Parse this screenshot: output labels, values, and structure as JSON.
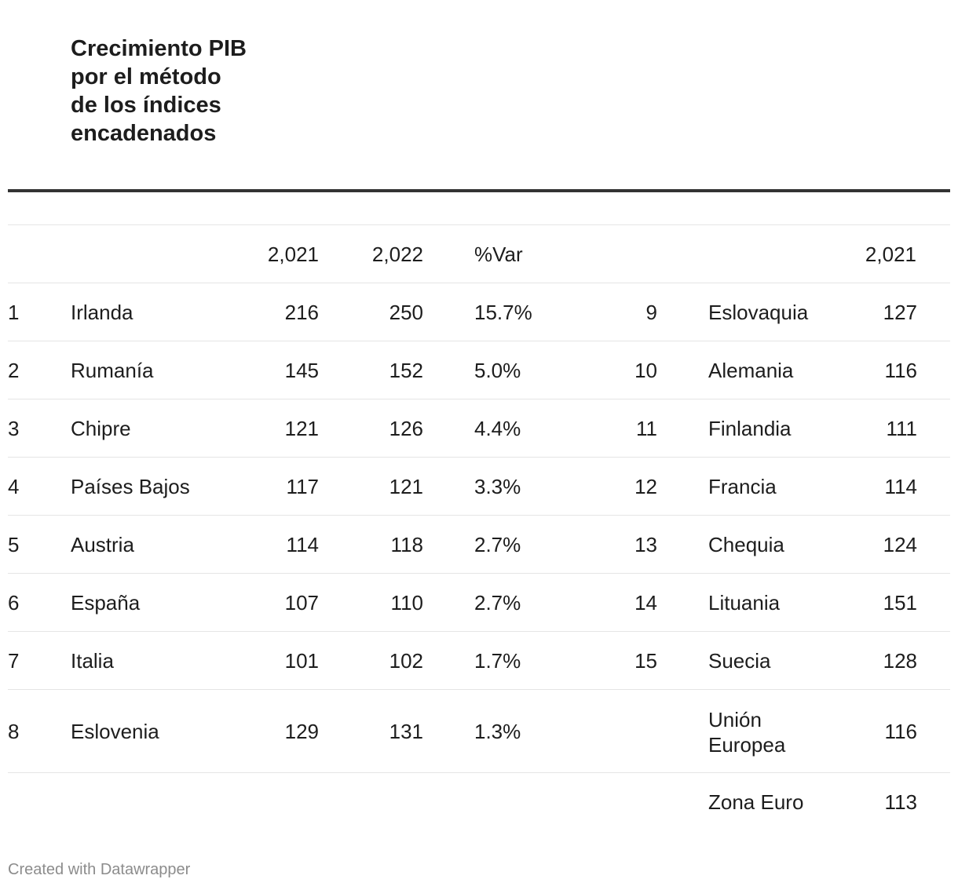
{
  "title": "Crecimiento PIB por el método de los índices encadenados",
  "headers": {
    "y2021": "2,021",
    "y2022": "2,022",
    "var": "%Var",
    "right_y2021": "2,021"
  },
  "left_rows": [
    {
      "rank": "1",
      "country": "Irlanda",
      "v2021": "216",
      "v2022": "250",
      "var": "15.7%"
    },
    {
      "rank": "2",
      "country": "Rumanía",
      "v2021": "145",
      "v2022": "152",
      "var": "5.0%"
    },
    {
      "rank": "3",
      "country": "Chipre",
      "v2021": "121",
      "v2022": "126",
      "var": "4.4%"
    },
    {
      "rank": "4",
      "country": "Países Bajos",
      "v2021": "117",
      "v2022": "121",
      "var": "3.3%"
    },
    {
      "rank": "5",
      "country": "Austria",
      "v2021": "114",
      "v2022": "118",
      "var": "2.7%"
    },
    {
      "rank": "6",
      "country": "España",
      "v2021": "107",
      "v2022": "110",
      "var": "2.7%"
    },
    {
      "rank": "7",
      "country": "Italia",
      "v2021": "101",
      "v2022": "102",
      "var": "1.7%"
    },
    {
      "rank": "8",
      "country": "Eslovenia",
      "v2021": "129",
      "v2022": "131",
      "var": "1.3%"
    }
  ],
  "right_rows": [
    {
      "rank": "9",
      "country": "Eslovaquia",
      "v2021": "127"
    },
    {
      "rank": "10",
      "country": "Alemania",
      "v2021": "116"
    },
    {
      "rank": "11",
      "country": "Finlandia",
      "v2021": "111"
    },
    {
      "rank": "12",
      "country": "Francia",
      "v2021": "114"
    },
    {
      "rank": "13",
      "country": "Chequia",
      "v2021": "124"
    },
    {
      "rank": "14",
      "country": "Lituania",
      "v2021": "151"
    },
    {
      "rank": "15",
      "country": "Suecia",
      "v2021": "128"
    },
    {
      "rank": "",
      "country": "Unión Europea",
      "v2021": "116"
    },
    {
      "rank": "",
      "country": "Zona Euro",
      "v2021": "113"
    }
  ],
  "footer": "Created with Datawrapper"
}
